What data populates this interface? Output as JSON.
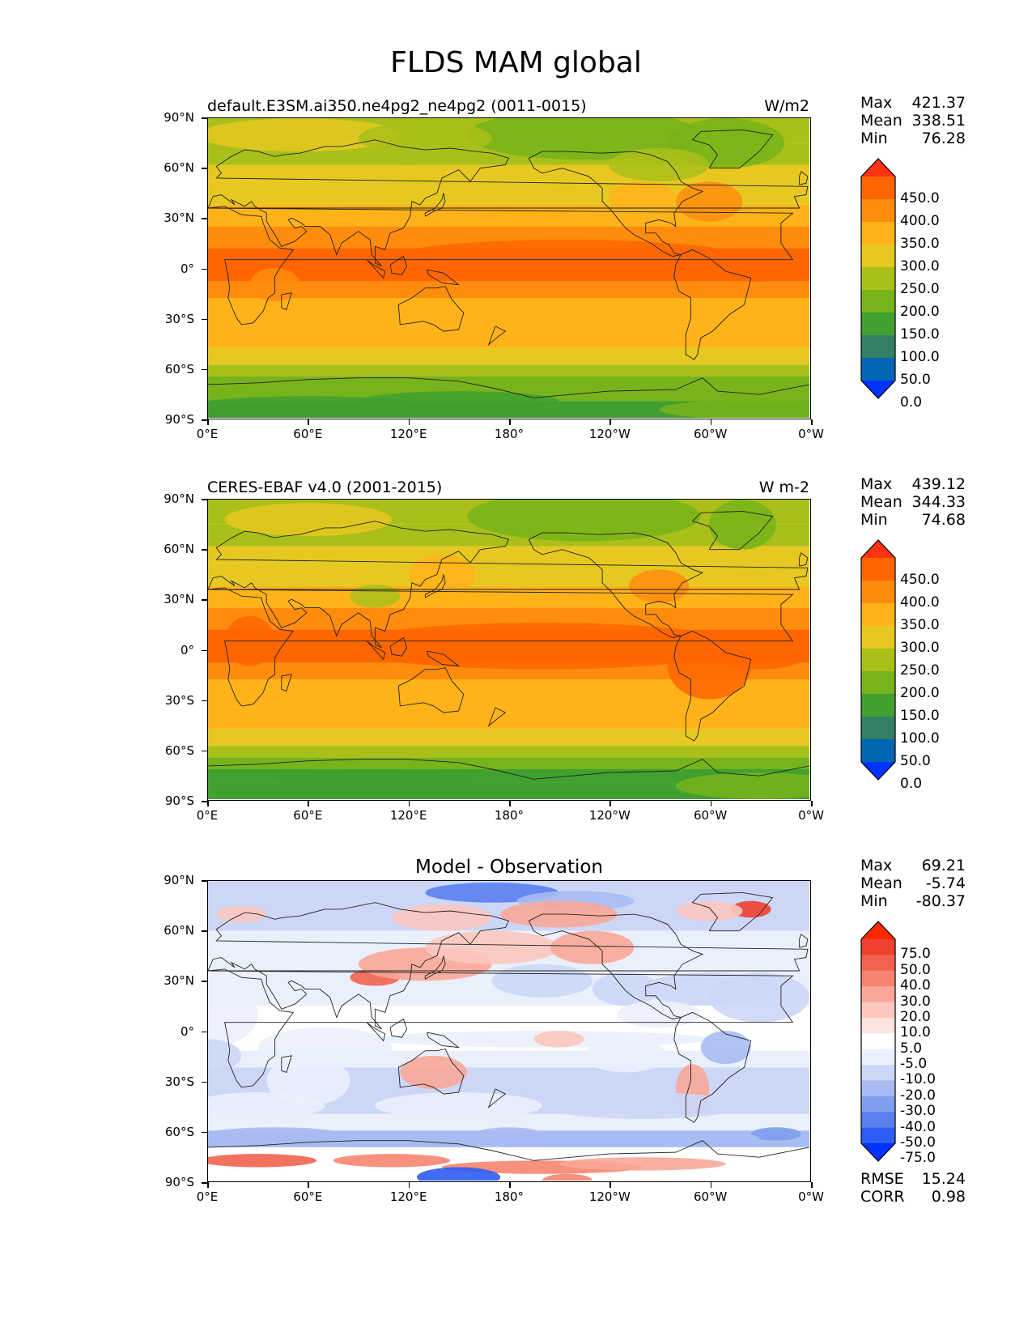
{
  "title": "FLDS MAM global",
  "panels": [
    {
      "id": "model",
      "left_title": "default.E3SM.ai350.ne4pg2_ne4pg2 (0011-0015)",
      "right_title": "W/m2",
      "stats": {
        "max_label": "Max",
        "max": "421.37",
        "mean_label": "Mean",
        "mean": "338.51",
        "min_label": "Min",
        "min": "76.28"
      },
      "colorbar_labels": [
        "450.0",
        "400.0",
        "350.0",
        "300.0",
        "250.0",
        "200.0",
        "150.0",
        "100.0",
        "50.0",
        "0.0"
      ]
    },
    {
      "id": "obs",
      "left_title": "CERES-EBAF v4.0 (2001-2015)",
      "right_title": "W m-2",
      "stats": {
        "max_label": "Max",
        "max": "439.12",
        "mean_label": "Mean",
        "mean": "344.33",
        "min_label": "Min",
        "min": "74.68"
      },
      "colorbar_labels": [
        "450.0",
        "400.0",
        "350.0",
        "300.0",
        "250.0",
        "200.0",
        "150.0",
        "100.0",
        "50.0",
        "0.0"
      ]
    },
    {
      "id": "diff",
      "center_title": "Model - Observation",
      "stats": {
        "max_label": "Max",
        "max": "69.21",
        "mean_label": "Mean",
        "mean": "-5.74",
        "min_label": "Min",
        "min": "-80.37"
      },
      "colorbar_labels": [
        "75.0",
        "50.0",
        "40.0",
        "30.0",
        "20.0",
        "10.0",
        "5.0",
        "-5.0",
        "-10.0",
        "-20.0",
        "-30.0",
        "-40.0",
        "-50.0",
        "-75.0"
      ],
      "rmse_label": "RMSE",
      "rmse": "15.24",
      "corr_label": "CORR",
      "corr": "0.98"
    }
  ],
  "lat_ticks": [
    "90°N",
    "60°N",
    "30°N",
    "0°",
    "30°S",
    "60°S",
    "90°S"
  ],
  "lon_ticks": [
    "0°E",
    "60°E",
    "120°E",
    "180°",
    "120°W",
    "60°W",
    "0°W"
  ],
  "colors": {
    "abs_scale": [
      "#0033ff",
      "#0066b3",
      "#338066",
      "#40a030",
      "#77b31a",
      "#aabf1a",
      "#e6c820",
      "#ffb319",
      "#ff8c0d",
      "#ff6600",
      "#ff3311"
    ],
    "diff_scale": [
      "#0033ff",
      "#2e5cf5",
      "#5b80ee",
      "#809fee",
      "#a8bbf2",
      "#ccd7f7",
      "#eaf0fb",
      "#ffffff",
      "#fde4e1",
      "#fcc7bf",
      "#f9a797",
      "#f6846f",
      "#f2624e",
      "#f04030",
      "#ff2a00"
    ]
  }
}
